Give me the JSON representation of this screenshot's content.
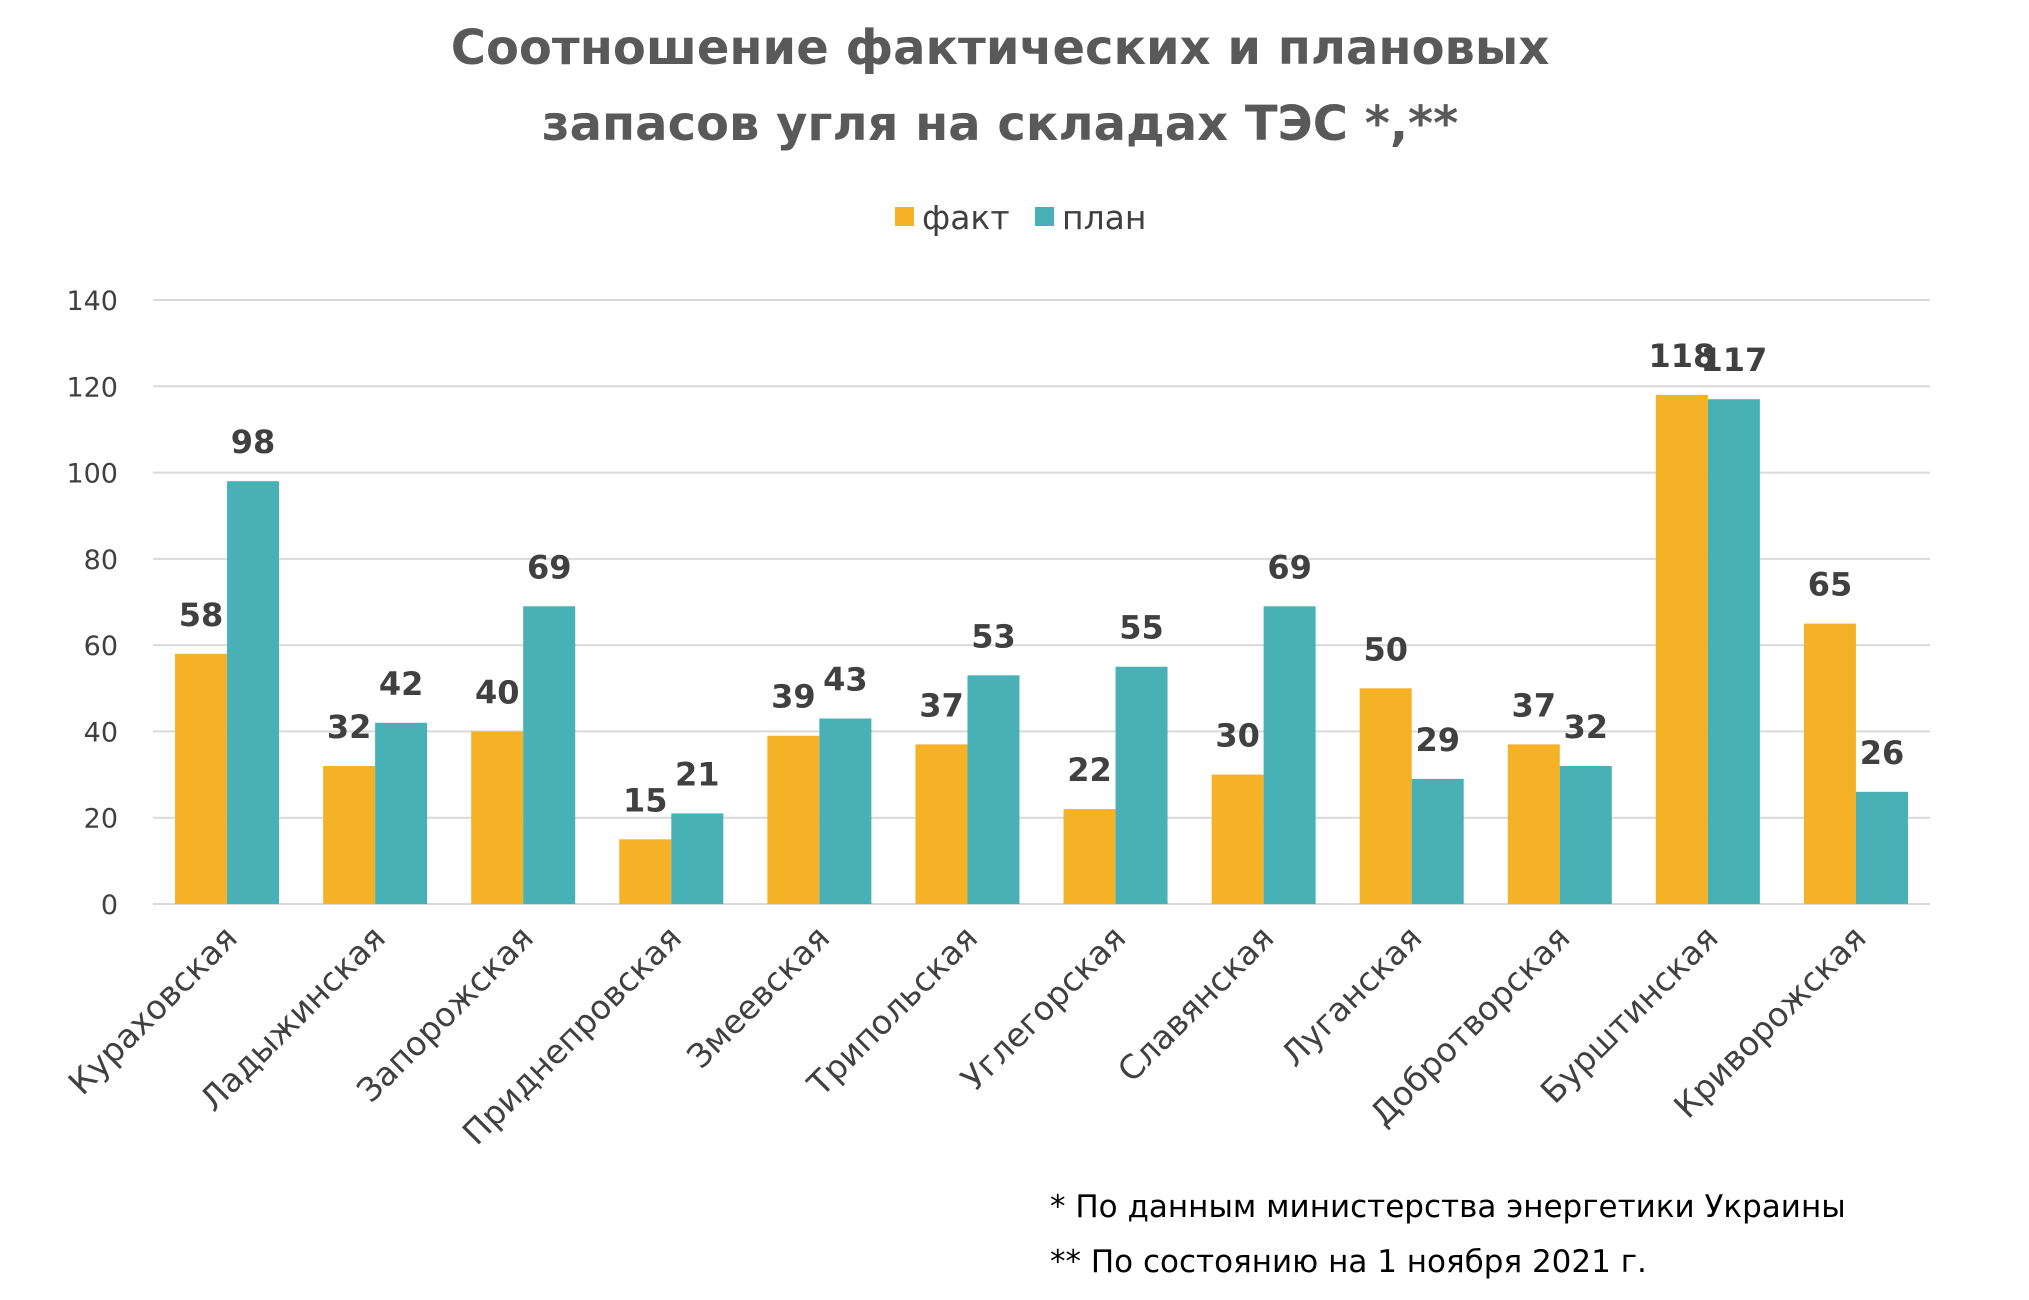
{
  "colors": {
    "fact": "#F6B226",
    "plan": "#47B1B5",
    "grid": "#D9D9D9",
    "text": "#404040",
    "title": "#595959"
  },
  "chart_data": {
    "type": "bar",
    "title": [
      "Соотношение фактических и плановых",
      "запасов угля на складах ТЭС *,**"
    ],
    "legend_position": "top-center",
    "grid": true,
    "ylim": [
      0,
      140
    ],
    "yticks": [
      "0",
      "20",
      "40",
      "60",
      "80",
      "100",
      "120",
      "140"
    ],
    "categories": [
      "Кураховская",
      "Ладыжинская",
      "Запорожская",
      "Приднепровская",
      "Змеевская",
      "Трипольская",
      "Углегорская",
      "Славянская",
      "Луганская",
      "Добротворская",
      "Бурштинская",
      "Криворожская"
    ],
    "series": [
      {
        "name": "факт",
        "values": [
          58,
          32,
          40,
          15,
          39,
          37,
          22,
          30,
          50,
          37,
          118,
          65
        ]
      },
      {
        "name": "план",
        "values": [
          98,
          42,
          69,
          21,
          43,
          53,
          55,
          69,
          29,
          32,
          117,
          26
        ]
      }
    ]
  },
  "footnotes": [
    "* По данным министерства энергетики Украины",
    "** По состоянию на 1 ноября 2021 г."
  ]
}
